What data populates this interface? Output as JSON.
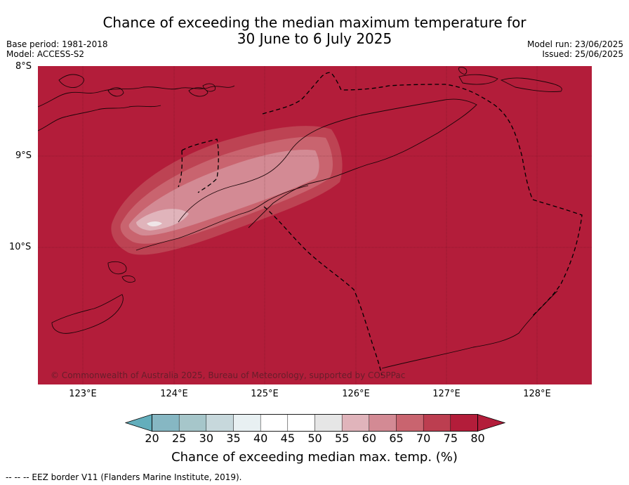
{
  "title": {
    "line1": "Chance of exceeding the median maximum temperature for",
    "line2": "30 June to 6 July 2025"
  },
  "meta_left": {
    "base_period": "Base period: 1981-2018",
    "model": "Model: ACCESS-S2"
  },
  "meta_right": {
    "model_run": "Model run: 23/06/2025",
    "issued": "Issued: 25/06/2025"
  },
  "map": {
    "lat_labels": [
      "8°S",
      "9°S",
      "10°S"
    ],
    "lon_labels": [
      "123°E",
      "124°E",
      "125°E",
      "126°E",
      "127°E",
      "128°E"
    ],
    "copyright": "© Commonwealth of Australia 2025, Bureau of Meteorology, supported by COSPPac",
    "background_color": "#b31d3a"
  },
  "colorbar": {
    "ticks": [
      "20",
      "25",
      "30",
      "35",
      "40",
      "45",
      "50",
      "55",
      "60",
      "65",
      "70",
      "75",
      "80"
    ],
    "colors": [
      "#63aebc",
      "#86b7c3",
      "#a6c6ca",
      "#c7d8dc",
      "#e8f0f2",
      "#ffffff",
      "#ffffff",
      "#e6e6e6",
      "#e0b4bb",
      "#d38a94",
      "#c9646f",
      "#bc3e50",
      "#b31d3a"
    ],
    "title": "Chance of exceeding median max. temp. (%)"
  },
  "footnote": "--  --  -- EEZ border V11 (Flanders Marine Institute, 2019)."
}
